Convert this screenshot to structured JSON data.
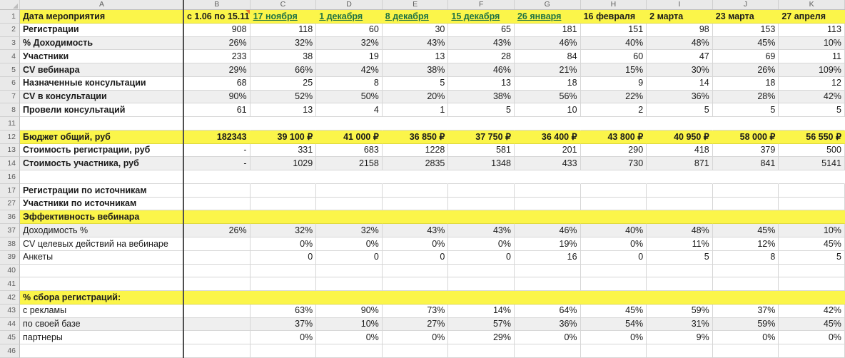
{
  "sheet": {
    "colors": {
      "highlight_yellow": "#FBF54A",
      "link_green": "#1F7244",
      "band_gray": "#EFEFEF",
      "comment_orange": "#E8762C",
      "gridline": "#D6D6D6"
    },
    "column_letters": [
      "A",
      "B",
      "C",
      "D",
      "E",
      "F",
      "G",
      "H",
      "I",
      "J",
      "K"
    ],
    "header_row": {
      "num": "1",
      "label": "Дата мероприятия",
      "cells": [
        {
          "text": "с 1.06 по 15.11",
          "type": "bold",
          "comment": true
        },
        {
          "text": "17 ноября",
          "type": "link"
        },
        {
          "text": "1 декабря",
          "type": "link"
        },
        {
          "text": "8 декабря",
          "type": "link"
        },
        {
          "text": "15 декабря",
          "type": "link"
        },
        {
          "text": "26 января",
          "type": "link"
        },
        {
          "text": "16 февраля",
          "type": "bold"
        },
        {
          "text": "2 марта",
          "type": "bold"
        },
        {
          "text": "23 марта",
          "type": "bold"
        },
        {
          "text": "27 апреля",
          "type": "bold"
        }
      ]
    },
    "rows": [
      {
        "num": "2",
        "label": "Регистрации",
        "bold": true,
        "values": [
          "908",
          "118",
          "60",
          "30",
          "65",
          "181",
          "151",
          "98",
          "153",
          "113"
        ]
      },
      {
        "num": "3",
        "label": "% Доходимость",
        "bold": true,
        "shaded": true,
        "values": [
          "26%",
          "32%",
          "32%",
          "43%",
          "43%",
          "46%",
          "40%",
          "48%",
          "45%",
          "10%"
        ]
      },
      {
        "num": "4",
        "label": "Участники",
        "bold": true,
        "values": [
          "233",
          "38",
          "19",
          "13",
          "28",
          "84",
          "60",
          "47",
          "69",
          "11"
        ]
      },
      {
        "num": "5",
        "label": "CV вебинара",
        "bold": true,
        "shaded": true,
        "values": [
          "29%",
          "66%",
          "42%",
          "38%",
          "46%",
          "21%",
          "15%",
          "30%",
          "26%",
          "109%"
        ]
      },
      {
        "num": "6",
        "label": "Назначенные консультации",
        "bold": true,
        "values": [
          "68",
          "25",
          "8",
          "5",
          "13",
          "18",
          "9",
          "14",
          "18",
          "12"
        ]
      },
      {
        "num": "7",
        "label": "CV в консультации",
        "bold": true,
        "shaded": true,
        "values": [
          "90%",
          "52%",
          "50%",
          "20%",
          "38%",
          "56%",
          "22%",
          "36%",
          "28%",
          "42%"
        ]
      },
      {
        "num": "8",
        "label": "Провели консультаций",
        "bold": true,
        "values": [
          "61",
          "13",
          "4",
          "1",
          "5",
          "10",
          "2",
          "5",
          "5",
          "5"
        ]
      },
      {
        "num": "11",
        "label": "",
        "no_vlines": true,
        "values": [
          "",
          "",
          "",
          "",
          "",
          "",
          "",
          "",
          "",
          ""
        ]
      },
      {
        "num": "12",
        "label": "Бюджет общий, руб",
        "bold": true,
        "yellow": true,
        "values_bold": true,
        "values": [
          "182343",
          "39 100 ₽",
          "41 000 ₽",
          "36 850 ₽",
          "37 750 ₽",
          "36 400 ₽",
          "43 800 ₽",
          "40 950 ₽",
          "58 000 ₽",
          "56 550 ₽"
        ]
      },
      {
        "num": "13",
        "label": "Стоимость регистрации, руб",
        "bold": true,
        "values": [
          "-",
          "331",
          "683",
          "1228",
          "581",
          "201",
          "290",
          "418",
          "379",
          "500"
        ]
      },
      {
        "num": "14",
        "label": "Стоимость участника, руб",
        "bold": true,
        "shaded": true,
        "values": [
          "-",
          "1029",
          "2158",
          "2835",
          "1348",
          "433",
          "730",
          "871",
          "841",
          "5141"
        ]
      },
      {
        "num": "16",
        "label": "",
        "no_vlines": true,
        "values": [
          "",
          "",
          "",
          "",
          "",
          "",
          "",
          "",
          "",
          ""
        ]
      },
      {
        "num": "17",
        "label": "Регистрации по источникам",
        "bold": true,
        "values": [
          "",
          "",
          "",
          "",
          "",
          "",
          "",
          "",
          "",
          ""
        ]
      },
      {
        "num": "27",
        "label": "Участники по источникам",
        "bold": true,
        "values": [
          "",
          "",
          "",
          "",
          "",
          "",
          "",
          "",
          "",
          ""
        ]
      },
      {
        "num": "36",
        "label": "Эффективность вебинара",
        "bold": true,
        "yellow": true,
        "values": [
          "",
          "",
          "",
          "",
          "",
          "",
          "",
          "",
          "",
          ""
        ]
      },
      {
        "num": "37",
        "label": "Доходимость %",
        "shaded": true,
        "values": [
          "26%",
          "32%",
          "32%",
          "43%",
          "43%",
          "46%",
          "40%",
          "48%",
          "45%",
          "10%"
        ]
      },
      {
        "num": "38",
        "label": "CV целевых действий на вебинаре",
        "values": [
          "",
          "0%",
          "0%",
          "0%",
          "0%",
          "19%",
          "0%",
          "11%",
          "12%",
          "45%"
        ]
      },
      {
        "num": "39",
        "label": "Анкеты",
        "values": [
          "",
          "0",
          "0",
          "0",
          "0",
          "16",
          "0",
          "5",
          "8",
          "5"
        ]
      },
      {
        "num": "40",
        "label": "",
        "values": [
          "",
          "",
          "",
          "",
          "",
          "",
          "",
          "",
          "",
          ""
        ]
      },
      {
        "num": "41",
        "label": "",
        "values": [
          "",
          "",
          "",
          "",
          "",
          "",
          "",
          "",
          "",
          ""
        ]
      },
      {
        "num": "42",
        "label": "% сбора регистраций:",
        "bold": true,
        "yellow": true,
        "values": [
          "",
          "",
          "",
          "",
          "",
          "",
          "",
          "",
          "",
          ""
        ]
      },
      {
        "num": "43",
        "label": "с рекламы",
        "values": [
          "",
          "63%",
          "90%",
          "73%",
          "14%",
          "64%",
          "45%",
          "59%",
          "37%",
          "42%"
        ]
      },
      {
        "num": "44",
        "label": "по своей базе",
        "shaded": true,
        "values": [
          "",
          "37%",
          "10%",
          "27%",
          "57%",
          "36%",
          "54%",
          "31%",
          "59%",
          "45%"
        ]
      },
      {
        "num": "45",
        "label": "партнеры",
        "values": [
          "",
          "0%",
          "0%",
          "0%",
          "29%",
          "0%",
          "0%",
          "9%",
          "0%",
          "0%"
        ]
      },
      {
        "num": "46",
        "label": "",
        "values": [
          "",
          "",
          "",
          "",
          "",
          "",
          "",
          "",
          "",
          ""
        ]
      }
    ]
  }
}
